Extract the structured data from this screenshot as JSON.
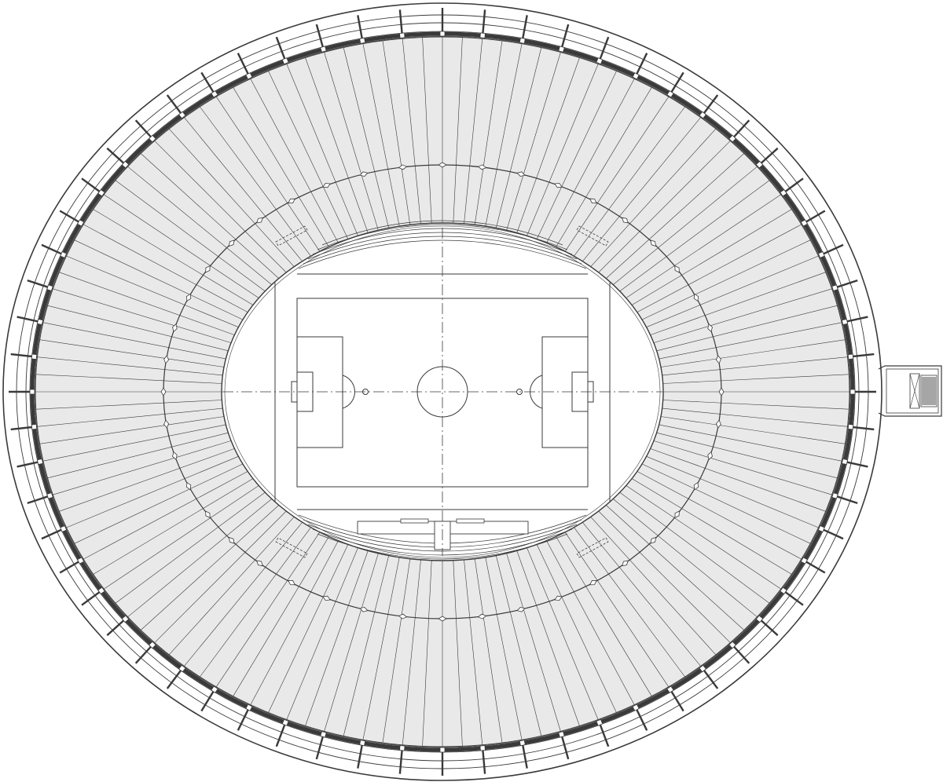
{
  "drawing": {
    "kind": "stadium-roof-plan",
    "colors": {
      "background": "#ffffff",
      "line": "#3a3a3a",
      "seating_fill": "#e9e9e9",
      "roof_edge_fill": "#9a9a9a"
    },
    "counts": {
      "roof_ribs": 64,
      "seating_radials": 128,
      "concourse_columns": 44
    },
    "annotations": []
  }
}
